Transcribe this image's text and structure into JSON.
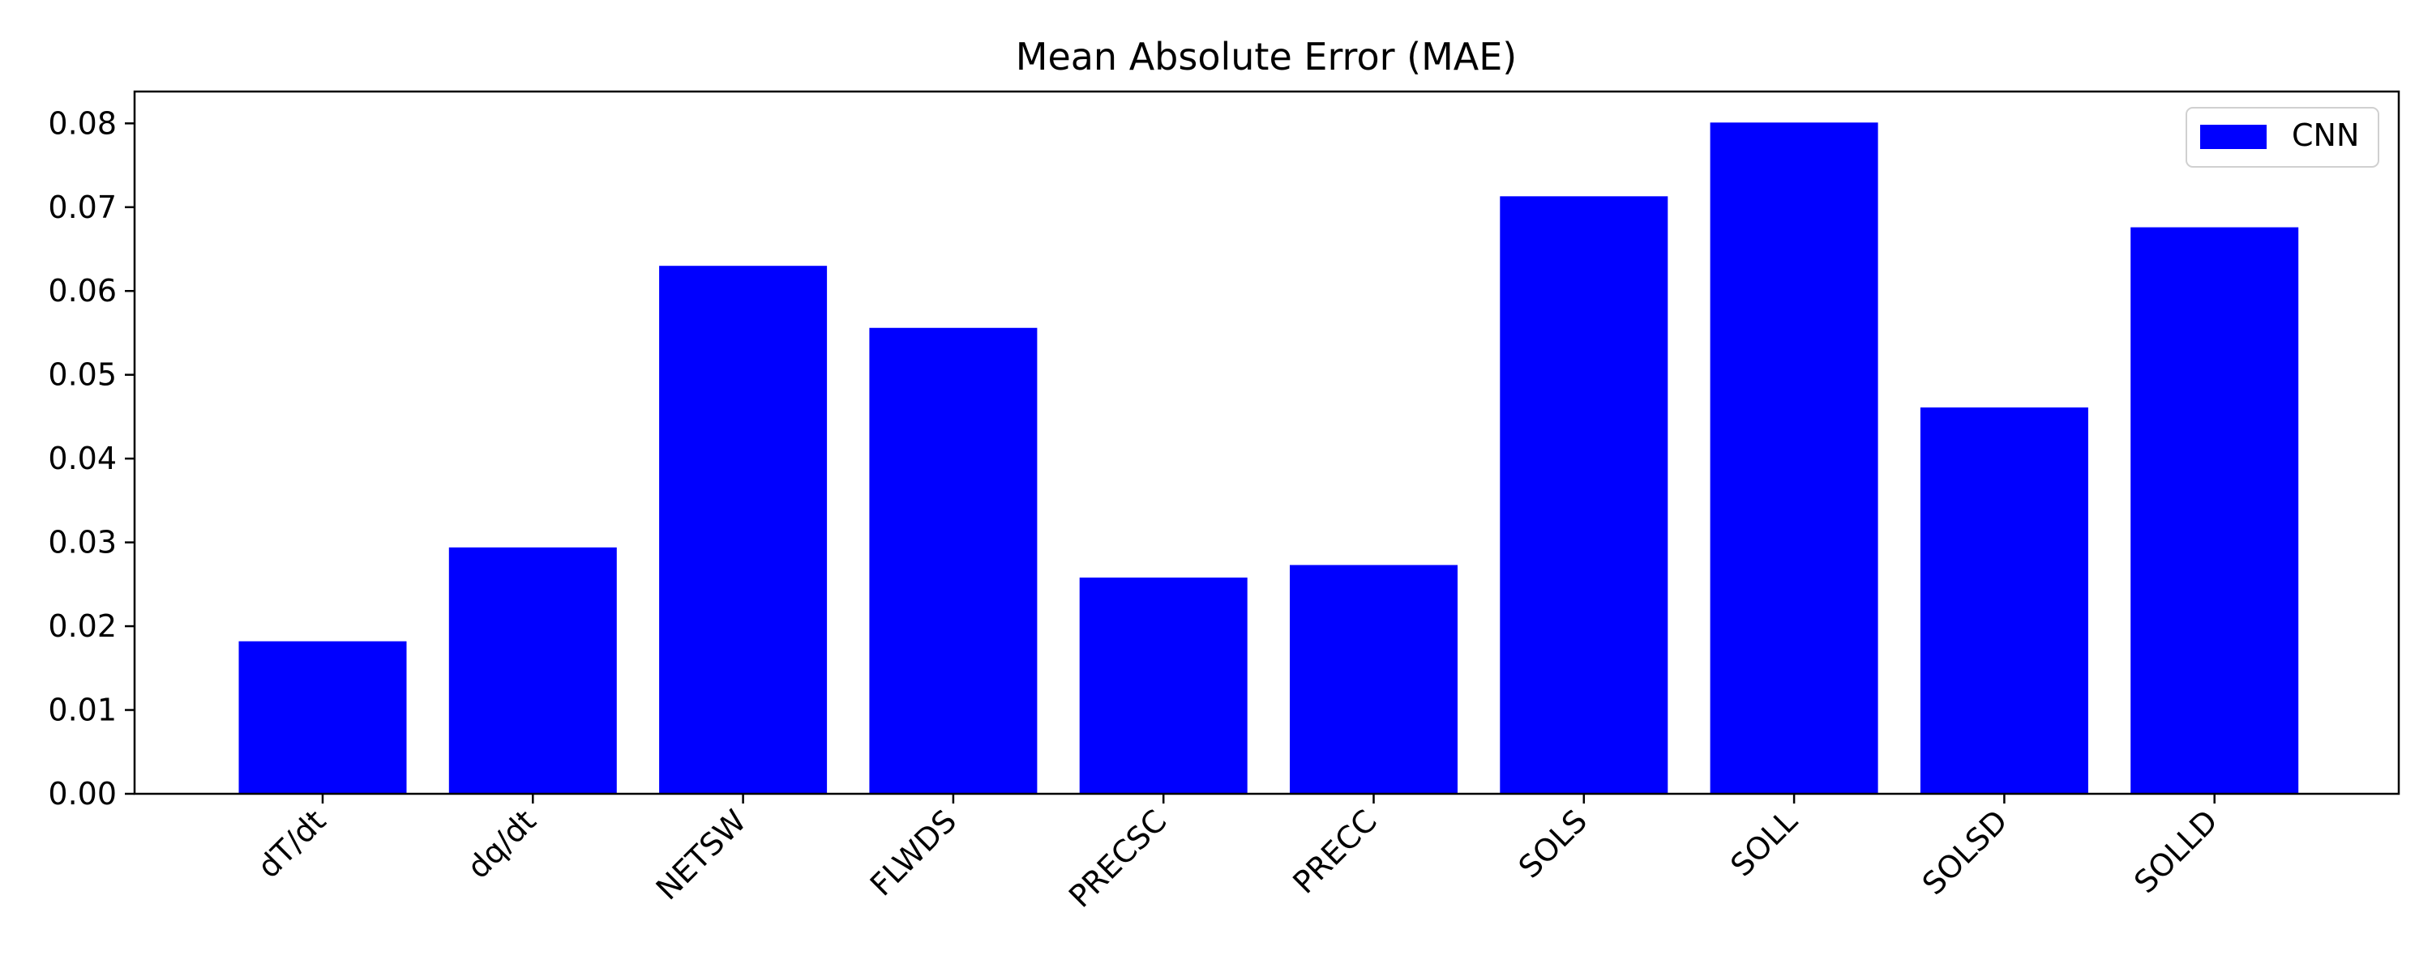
{
  "chart_data": {
    "type": "bar",
    "title": "Mean Absolute Error (MAE)",
    "xlabel": "",
    "ylabel": "",
    "categories": [
      "dT/dt",
      "dq/dt",
      "NETSW",
      "FLWDS",
      "PRECSC",
      "PRECC",
      "SOLS",
      "SOLL",
      "SOLSD",
      "SOLLD"
    ],
    "series": [
      {
        "name": "CNN",
        "color": "#0000ff",
        "values": [
          0.0182,
          0.0294,
          0.063,
          0.0556,
          0.0258,
          0.0273,
          0.0713,
          0.0801,
          0.0461,
          0.0676
        ]
      }
    ],
    "ylim": [
      0,
      0.0838
    ],
    "yticks": [
      "0.00",
      "0.01",
      "0.02",
      "0.03",
      "0.04",
      "0.05",
      "0.06",
      "0.07",
      "0.08"
    ],
    "ytick_values": [
      0,
      0.01,
      0.02,
      0.03,
      0.04,
      0.05,
      0.06,
      0.07,
      0.08
    ],
    "xtick_rotation": 45,
    "grid": false,
    "legend_position": "top-right"
  }
}
